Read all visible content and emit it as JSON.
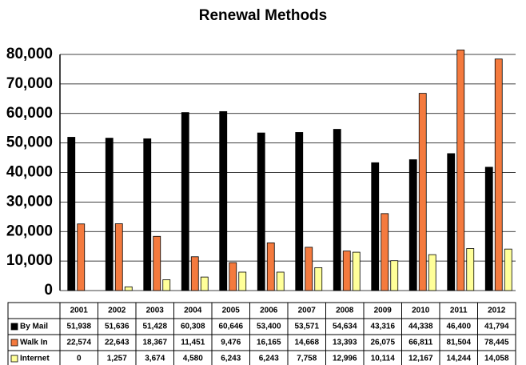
{
  "chart_data": {
    "type": "bar",
    "title": "Renewal Methods",
    "categories": [
      "2001",
      "2002",
      "2003",
      "2004",
      "2005",
      "2006",
      "2007",
      "2008",
      "2009",
      "2010",
      "2011",
      "2012"
    ],
    "series": [
      {
        "name": "By Mail",
        "color": "#000000",
        "values": [
          51938,
          51636,
          51428,
          60308,
          60646,
          53400,
          53571,
          54634,
          43316,
          44338,
          46400,
          41794
        ],
        "value_labels": [
          "51,938",
          "51,636",
          "51,428",
          "60,308",
          "60,646",
          "53,400",
          "53,571",
          "54,634",
          "43,316",
          "44,338",
          "46,400",
          "41,794"
        ]
      },
      {
        "name": "Walk In",
        "color": "#f47a3e",
        "values": [
          22574,
          22643,
          18367,
          11451,
          9476,
          16165,
          14668,
          13393,
          26075,
          66811,
          81504,
          78445
        ],
        "value_labels": [
          "22,574",
          "22,643",
          "18,367",
          "11,451",
          "9,476",
          "16,165",
          "14,668",
          "13,393",
          "26,075",
          "66,811",
          "81,504",
          "78,445"
        ]
      },
      {
        "name": "Internet",
        "color": "#ffff99",
        "values": [
          0,
          1257,
          3674,
          4580,
          6243,
          6243,
          7758,
          12996,
          10114,
          12167,
          14244,
          14058
        ],
        "value_labels": [
          "0",
          "1,257",
          "3,674",
          "4,580",
          "6,243",
          "6,243",
          "7,758",
          "12,996",
          "10,114",
          "12,167",
          "14,244",
          "14,058"
        ]
      }
    ],
    "ylim": [
      0,
      80000
    ],
    "yticks": [
      0,
      {
        "value": 10000,
        "label": "10,000"
      },
      {
        "value": 20000,
        "label": "20,000"
      },
      {
        "value": 30000,
        "label": "30,000"
      },
      {
        "value": 40000,
        "label": "40,000"
      },
      {
        "value": 50000,
        "label": "50,000"
      },
      {
        "value": 60000,
        "label": "60,000"
      },
      {
        "value": 70000,
        "label": "70,000"
      },
      {
        "value": 80000,
        "label": "80,000"
      }
    ],
    "grid": true
  }
}
